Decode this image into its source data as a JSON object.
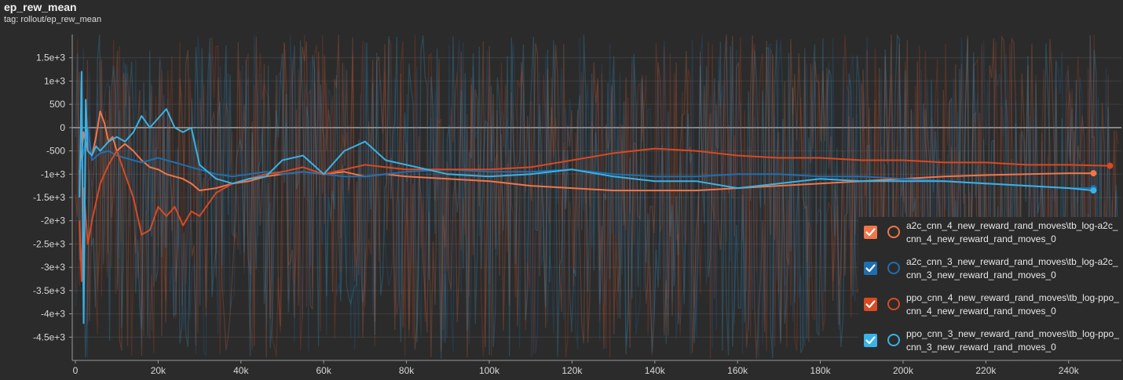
{
  "header": {
    "title": "ep_rew_mean",
    "tag": "tag: rollout/ep_rew_mean"
  },
  "colors": {
    "a2c4": "#f0764a",
    "a2c3": "#1f6fb0",
    "ppo4": "#d84a22",
    "ppo3": "#39b2e6",
    "gridline": "#3f3f3f",
    "zeroline": "#a0a0a0"
  },
  "legend": {
    "items": [
      {
        "label": "a2c_cnn_4_new_reward_rand_moves\\tb_log-a2c_cnn_4_new_reward_rand_moves_0",
        "color": "#f0764a",
        "checked": true
      },
      {
        "label": "a2c_cnn_3_new_reward_rand_moves\\tb_log-a2c_cnn_3_new_reward_rand_moves_0",
        "color": "#1f6fb0",
        "checked": true
      },
      {
        "label": "ppo_cnn_4_new_reward_rand_moves\\tb_log-ppo_cnn_4_new_reward_rand_moves_0",
        "color": "#d84a22",
        "checked": true
      },
      {
        "label": "ppo_cnn_3_new_reward_rand_moves\\tb_log-ppo_cnn_3_new_reward_rand_moves_0",
        "color": "#39b2e6",
        "checked": true
      }
    ]
  },
  "chart_data": {
    "type": "line",
    "title": "ep_rew_mean",
    "subtitle": "tag: rollout/ep_rew_mean",
    "xlabel": "",
    "ylabel": "",
    "xlim": [
      0,
      252000
    ],
    "ylim": [
      -5000,
      2000
    ],
    "grid": true,
    "legend_position": "bottom-right",
    "x_ticks": [
      0,
      20000,
      40000,
      60000,
      80000,
      100000,
      120000,
      140000,
      160000,
      180000,
      200000,
      220000,
      240000
    ],
    "x_tick_labels": [
      "0",
      "20k",
      "40k",
      "60k",
      "80k",
      "100k",
      "120k",
      "140k",
      "160k",
      "180k",
      "200k",
      "220k",
      "240k"
    ],
    "y_ticks": [
      1500,
      1000,
      500,
      0,
      -500,
      -1000,
      -1500,
      -2000,
      -2500,
      -3000,
      -3500,
      -4000,
      -4500
    ],
    "y_tick_labels": [
      "1.5e+3",
      "1e+3",
      "500",
      "0",
      "-500",
      "-1e+3",
      "-1.5e+3",
      "-2e+3",
      "-2.5e+3",
      "-3e+3",
      "-3.5e+3",
      "-4e+3",
      "-4.5e+3"
    ],
    "series": [
      {
        "name": "a2c_cnn_4_new_reward_rand_moves\\tb_log-a2c_cnn_4_new_reward_rand_moves_0",
        "color": "#f0764a",
        "x": [
          1000,
          2000,
          3000,
          4000,
          5000,
          6000,
          7000,
          8000,
          9000,
          10000,
          12000,
          14000,
          16000,
          18000,
          20000,
          22000,
          24000,
          26000,
          28000,
          30000,
          34000,
          38000,
          42000,
          46000,
          50000,
          55000,
          60000,
          65000,
          70000,
          75000,
          80000,
          90000,
          100000,
          110000,
          120000,
          130000,
          140000,
          150000,
          160000,
          170000,
          180000,
          190000,
          200000,
          210000,
          220000,
          230000,
          240000,
          246000
        ],
        "y": [
          -1000,
          -100,
          -500,
          -600,
          -200,
          350,
          100,
          -300,
          -200,
          -500,
          -350,
          -500,
          -700,
          -850,
          -900,
          -1000,
          -1050,
          -1100,
          -1200,
          -1350,
          -1300,
          -1200,
          -1150,
          -1050,
          -1000,
          -950,
          -1000,
          -950,
          -1050,
          -1000,
          -1050,
          -1100,
          -1150,
          -1250,
          -1300,
          -1350,
          -1350,
          -1350,
          -1300,
          -1250,
          -1200,
          -1150,
          -1100,
          -1050,
          -1020,
          -1000,
          -980,
          -980
        ]
      },
      {
        "name": "a2c_cnn_3_new_reward_rand_moves\\tb_log-a2c_cnn_3_new_reward_rand_moves_0",
        "color": "#1f6fb0",
        "x": [
          1000,
          2000,
          3000,
          4000,
          6000,
          8000,
          10000,
          12000,
          14000,
          16000,
          18000,
          20000,
          22000,
          24000,
          26000,
          28000,
          30000,
          34000,
          38000,
          42000,
          46000,
          50000,
          55000,
          60000,
          65000,
          70000,
          75000,
          80000,
          90000,
          100000,
          110000,
          120000,
          130000,
          140000,
          150000,
          160000,
          170000,
          180000,
          190000,
          200000,
          210000,
          220000,
          230000,
          240000,
          246000
        ],
        "y": [
          -1000,
          -500,
          0,
          -700,
          -550,
          -500,
          -600,
          -650,
          -700,
          -750,
          -700,
          -650,
          -700,
          -750,
          -800,
          -850,
          -900,
          -1000,
          -1050,
          -1000,
          -950,
          -1000,
          -950,
          -1000,
          -1050,
          -1050,
          -1000,
          -950,
          -900,
          -950,
          -950,
          -900,
          -1000,
          -1050,
          -1050,
          -1000,
          -1000,
          -1050,
          -1050,
          -1100,
          -1150,
          -1200,
          -1250,
          -1300,
          -1300
        ]
      },
      {
        "name": "ppo_cnn_4_new_reward_rand_moves\\tb_log-ppo_cnn_4_new_reward_rand_moves_0",
        "color": "#d84a22",
        "x": [
          1000,
          1500,
          2000,
          3000,
          4000,
          6000,
          8000,
          10000,
          12000,
          14000,
          16000,
          18000,
          20000,
          22000,
          24000,
          26000,
          28000,
          30000,
          34000,
          38000,
          42000,
          46000,
          50000,
          55000,
          60000,
          65000,
          70000,
          75000,
          80000,
          90000,
          100000,
          110000,
          120000,
          130000,
          140000,
          150000,
          160000,
          170000,
          180000,
          190000,
          200000,
          210000,
          220000,
          230000,
          240000,
          250000
        ],
        "y": [
          -2000,
          -3300,
          -1300,
          -2500,
          -2000,
          -1200,
          -800,
          -500,
          -1000,
          -1500,
          -2300,
          -2200,
          -1700,
          -1900,
          -1700,
          -2100,
          -1800,
          -1900,
          -1400,
          -1200,
          -1100,
          -1000,
          -950,
          -850,
          -1000,
          -900,
          -800,
          -850,
          -900,
          -900,
          -900,
          -850,
          -700,
          -550,
          -450,
          -500,
          -600,
          -650,
          -650,
          -700,
          -700,
          -750,
          -750,
          -800,
          -800,
          -820
        ]
      },
      {
        "name": "ppo_cnn_3_new_reward_rand_moves\\tb_log-ppo_cnn_3_new_reward_rand_moves_0",
        "color": "#39b2e6",
        "x": [
          1000,
          1500,
          2000,
          2500,
          3000,
          4000,
          5000,
          6000,
          8000,
          10000,
          12000,
          14000,
          16000,
          18000,
          20000,
          22000,
          24000,
          26000,
          28000,
          30000,
          34000,
          38000,
          42000,
          46000,
          50000,
          55000,
          60000,
          65000,
          70000,
          75000,
          80000,
          90000,
          100000,
          110000,
          120000,
          130000,
          140000,
          150000,
          160000,
          170000,
          180000,
          190000,
          200000,
          210000,
          220000,
          230000,
          240000,
          246000
        ],
        "y": [
          -1500,
          1200,
          -4200,
          600,
          -500,
          -600,
          -400,
          -500,
          -300,
          -200,
          -300,
          -100,
          250,
          0,
          200,
          400,
          0,
          -100,
          0,
          -800,
          -1100,
          -1200,
          -1100,
          -1050,
          -700,
          -600,
          -1000,
          -500,
          -300,
          -700,
          -800,
          -1000,
          -1050,
          -1000,
          -900,
          -1050,
          -1150,
          -1150,
          -1300,
          -1200,
          -1100,
          -1150,
          -1150,
          -1150,
          -1200,
          -1250,
          -1300,
          -1350
        ]
      }
    ]
  }
}
